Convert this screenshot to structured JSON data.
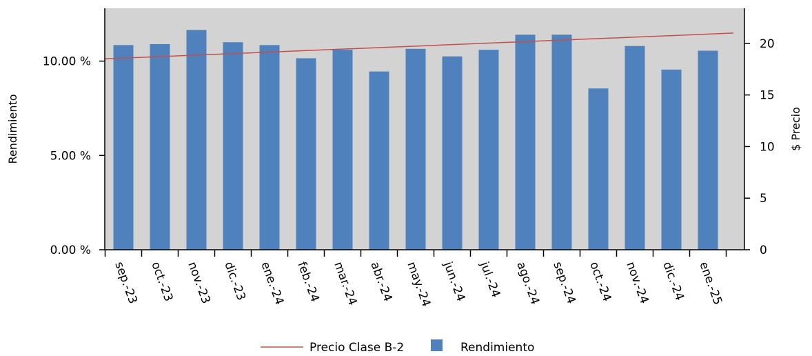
{
  "chart_data": {
    "type": "bar",
    "categories": [
      "sep.-23",
      "oct.-23",
      "nov.-23",
      "dic.-23",
      "ene.-24",
      "feb.-24",
      "mar.-24",
      "abr.-24",
      "may.-24",
      "jun.-24",
      "jul.-24",
      "ago.-24",
      "sep.-24",
      "oct.-24",
      "nov.-24",
      "dic.-24",
      "ene.-25"
    ],
    "series": [
      {
        "name": "Rendimiento",
        "kind": "bar",
        "axis": "left",
        "values": [
          10.85,
          10.9,
          11.65,
          11.0,
          10.85,
          10.15,
          10.6,
          9.45,
          10.65,
          10.25,
          10.6,
          11.4,
          11.4,
          8.55,
          10.8,
          9.55,
          10.55
        ]
      },
      {
        "name": "Precio Clase B-2",
        "kind": "line",
        "axis": "right",
        "x": [
          -0.5,
          16.7
        ],
        "values": [
          18.5,
          21.0
        ]
      }
    ],
    "ylabel": "Rendimiento",
    "ylabel_right": "$ Precio",
    "ylim": [
      0,
      12.8
    ],
    "ylim_right": [
      0,
      23.4
    ],
    "yticks": [
      0,
      5,
      10
    ],
    "yticks_labels": [
      "0.00 %",
      "5.00 %",
      "10.00 %"
    ],
    "yticks_right": [
      0,
      5,
      10,
      15,
      20
    ],
    "yticks_right_labels": [
      "0",
      "5",
      "10",
      "15",
      "20"
    ],
    "grid": false,
    "legend_position": "bottom-center",
    "colors": {
      "bar": "#4f81bd",
      "line": "#c0504d",
      "plot_background": "#d3d3d3"
    }
  }
}
